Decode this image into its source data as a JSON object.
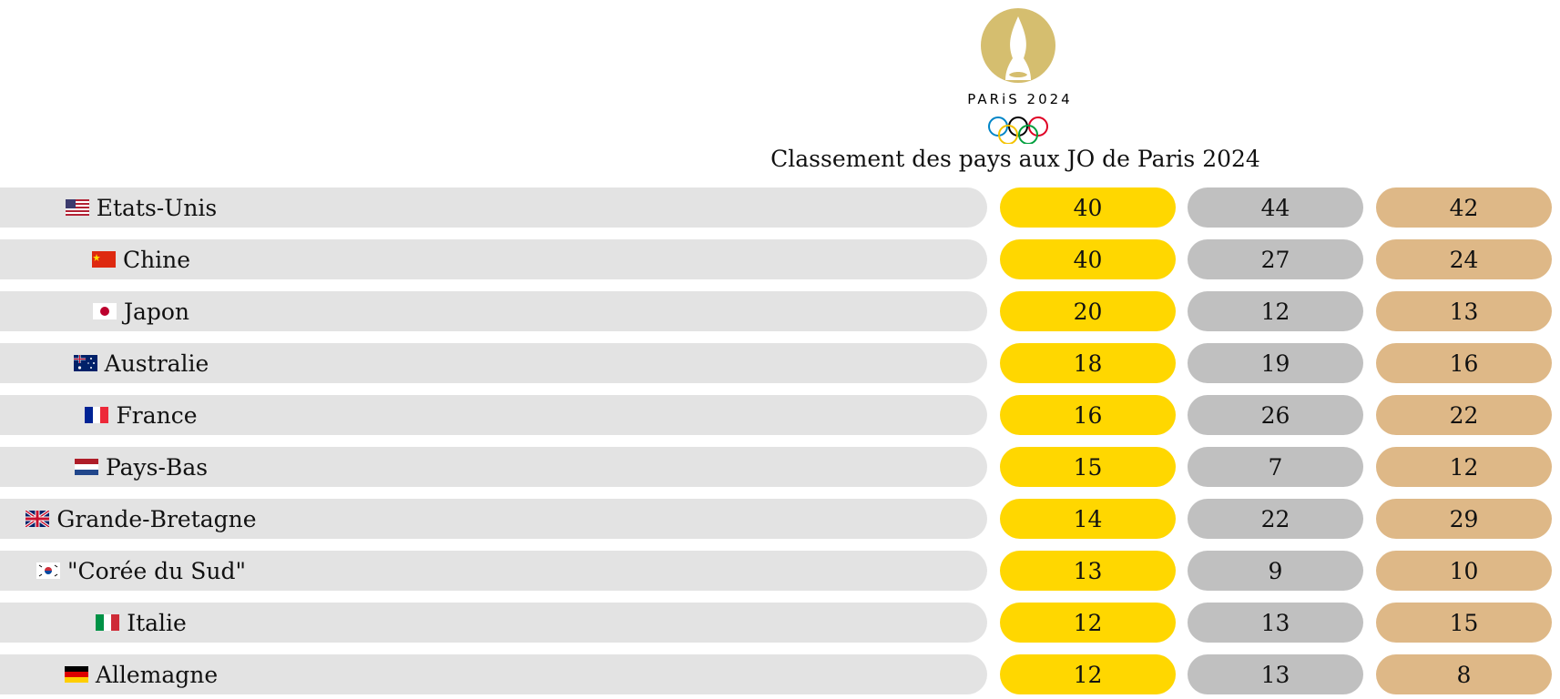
{
  "logo": {
    "text": "PARiS 2024"
  },
  "chart_data": {
    "type": "table",
    "title": "Classement des pays aux JO de Paris 2024",
    "colors": {
      "gold": "#ffd700",
      "silver": "#c0c0c0",
      "bronze": "#deb887",
      "row_bg": "#e3e3e3"
    },
    "rows": [
      {
        "country": "Etats-Unis",
        "flag": "us-flag-icon",
        "gold": "40",
        "silver": "44",
        "bronze": "42"
      },
      {
        "country": "Chine",
        "flag": "cn-flag-icon",
        "gold": "40",
        "silver": "27",
        "bronze": "24"
      },
      {
        "country": "Japon",
        "flag": "jp-flag-icon",
        "gold": "20",
        "silver": "12",
        "bronze": "13"
      },
      {
        "country": "Australie",
        "flag": "au-flag-icon",
        "gold": "18",
        "silver": "19",
        "bronze": "16"
      },
      {
        "country": "France",
        "flag": "fr-flag-icon",
        "gold": "16",
        "silver": "26",
        "bronze": "22"
      },
      {
        "country": "Pays-Bas",
        "flag": "nl-flag-icon",
        "gold": "15",
        "silver": "7",
        "bronze": "12"
      },
      {
        "country": "Grande-Bretagne",
        "flag": "gb-flag-icon",
        "gold": "14",
        "silver": "22",
        "bronze": "29"
      },
      {
        "country": "\"Corée du Sud\"",
        "flag": "kr-flag-icon",
        "gold": "13",
        "silver": "9",
        "bronze": "10"
      },
      {
        "country": "Italie",
        "flag": "it-flag-icon",
        "gold": "12",
        "silver": "13",
        "bronze": "15"
      },
      {
        "country": "Allemagne",
        "flag": "de-flag-icon",
        "gold": "12",
        "silver": "13",
        "bronze": "8"
      }
    ]
  }
}
